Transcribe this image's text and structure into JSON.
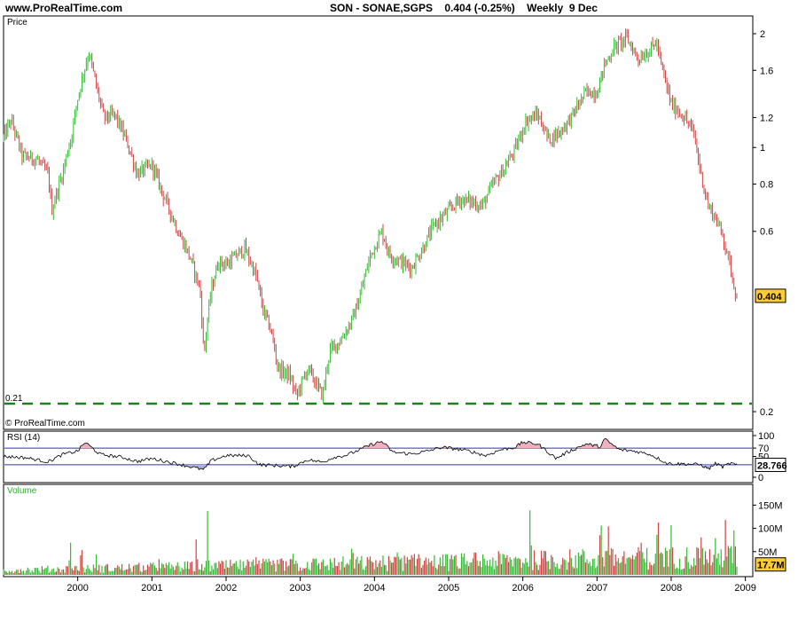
{
  "header": {
    "site": "www.ProRealTime.com",
    "symbol": "SON - SONAE,SGPS",
    "price": "0.404",
    "change": "(-0.25%)",
    "period": "Weekly",
    "date": "9 Dec"
  },
  "copyright": "© ProRealTime.com",
  "colors": {
    "up": "#33bb33",
    "down": "#cc4444",
    "support": "#118811",
    "rsi_line": "#000000",
    "rsi_bands": "#3333aa",
    "badge": "#ffcc33"
  },
  "chart_data": [
    {
      "type": "candlestick",
      "title": "Price",
      "scale": "log",
      "y_ticks": [
        {
          "value": 2,
          "label": "2"
        },
        {
          "value": 1.6,
          "label": "1.6"
        },
        {
          "value": 1.2,
          "label": "1.2"
        },
        {
          "value": 1,
          "label": "1"
        },
        {
          "value": 0.8,
          "label": "0.8"
        },
        {
          "value": 0.6,
          "label": "0.6"
        },
        {
          "value": 0.2,
          "label": "0.2"
        }
      ],
      "last_value": "0.404",
      "support_line": {
        "value": 0.21,
        "label": "0.21"
      },
      "x_ticks": [
        "2000",
        "2001",
        "2002",
        "2003",
        "2004",
        "2005",
        "2006",
        "2007",
        "2008",
        "2009"
      ],
      "x_range": [
        1999.0,
        2009.1
      ],
      "close_path": [
        [
          1999.0,
          1.06
        ],
        [
          1999.1,
          1.18
        ],
        [
          1999.25,
          0.95
        ],
        [
          1999.45,
          0.93
        ],
        [
          1999.6,
          0.85
        ],
        [
          1999.65,
          0.68
        ],
        [
          1999.8,
          0.86
        ],
        [
          1999.92,
          1.08
        ],
        [
          2000.0,
          1.35
        ],
        [
          2000.15,
          1.78
        ],
        [
          2000.25,
          1.45
        ],
        [
          2000.35,
          1.2
        ],
        [
          2000.5,
          1.22
        ],
        [
          2000.65,
          1.05
        ],
        [
          2000.8,
          0.85
        ],
        [
          2001.0,
          0.9
        ],
        [
          2001.15,
          0.75
        ],
        [
          2001.35,
          0.6
        ],
        [
          2001.5,
          0.52
        ],
        [
          2001.65,
          0.42
        ],
        [
          2001.7,
          0.28
        ],
        [
          2001.8,
          0.42
        ],
        [
          2001.9,
          0.5
        ],
        [
          2002.0,
          0.49
        ],
        [
          2002.15,
          0.52
        ],
        [
          2002.25,
          0.54
        ],
        [
          2002.4,
          0.46
        ],
        [
          2002.5,
          0.37
        ],
        [
          2002.6,
          0.33
        ],
        [
          2002.7,
          0.26
        ],
        [
          2002.85,
          0.25
        ],
        [
          2002.95,
          0.22
        ],
        [
          2003.1,
          0.26
        ],
        [
          2003.2,
          0.24
        ],
        [
          2003.3,
          0.22
        ],
        [
          2003.4,
          0.29
        ],
        [
          2003.55,
          0.31
        ],
        [
          2003.7,
          0.35
        ],
        [
          2003.8,
          0.4
        ],
        [
          2003.95,
          0.52
        ],
        [
          2004.1,
          0.6
        ],
        [
          2004.2,
          0.52
        ],
        [
          2004.35,
          0.5
        ],
        [
          2004.5,
          0.48
        ],
        [
          2004.65,
          0.54
        ],
        [
          2004.8,
          0.62
        ],
        [
          2005.0,
          0.68
        ],
        [
          2005.15,
          0.73
        ],
        [
          2005.3,
          0.72
        ],
        [
          2005.45,
          0.7
        ],
        [
          2005.6,
          0.8
        ],
        [
          2005.75,
          0.88
        ],
        [
          2005.9,
          0.99
        ],
        [
          2006.05,
          1.18
        ],
        [
          2006.2,
          1.22
        ],
        [
          2006.35,
          1.05
        ],
        [
          2006.5,
          1.1
        ],
        [
          2006.65,
          1.2
        ],
        [
          2006.85,
          1.4
        ],
        [
          2007.0,
          1.4
        ],
        [
          2007.1,
          1.65
        ],
        [
          2007.25,
          1.86
        ],
        [
          2007.4,
          1.95
        ],
        [
          2007.55,
          1.72
        ],
        [
          2007.7,
          1.8
        ],
        [
          2007.8,
          1.9
        ],
        [
          2007.88,
          1.6
        ],
        [
          2008.0,
          1.3
        ],
        [
          2008.15,
          1.22
        ],
        [
          2008.3,
          1.1
        ],
        [
          2008.4,
          0.85
        ],
        [
          2008.5,
          0.7
        ],
        [
          2008.6,
          0.65
        ],
        [
          2008.7,
          0.58
        ],
        [
          2008.8,
          0.48
        ],
        [
          2008.88,
          0.404
        ]
      ]
    },
    {
      "type": "line",
      "title": "RSI (14)",
      "y_ticks": [
        100,
        70,
        50,
        0
      ],
      "bands": [
        70,
        30
      ],
      "last_value": "28.766",
      "path": [
        [
          1999.0,
          50
        ],
        [
          1999.3,
          47
        ],
        [
          1999.6,
          37
        ],
        [
          1999.8,
          55
        ],
        [
          2000.0,
          63
        ],
        [
          2000.1,
          84
        ],
        [
          2000.3,
          55
        ],
        [
          2000.6,
          48
        ],
        [
          2000.8,
          38
        ],
        [
          2001.0,
          45
        ],
        [
          2001.3,
          34
        ],
        [
          2001.55,
          24
        ],
        [
          2001.7,
          18
        ],
        [
          2001.8,
          40
        ],
        [
          2002.0,
          52
        ],
        [
          2002.3,
          52
        ],
        [
          2002.45,
          30
        ],
        [
          2002.7,
          28
        ],
        [
          2002.9,
          26
        ],
        [
          2003.1,
          42
        ],
        [
          2003.3,
          36
        ],
        [
          2003.45,
          48
        ],
        [
          2003.6,
          52
        ],
        [
          2003.75,
          62
        ],
        [
          2003.95,
          78
        ],
        [
          2004.1,
          86
        ],
        [
          2004.25,
          60
        ],
        [
          2004.5,
          56
        ],
        [
          2004.7,
          62
        ],
        [
          2004.9,
          72
        ],
        [
          2005.1,
          68
        ],
        [
          2005.3,
          62
        ],
        [
          2005.5,
          52
        ],
        [
          2005.7,
          66
        ],
        [
          2005.9,
          72
        ],
        [
          2006.0,
          84
        ],
        [
          2006.2,
          80
        ],
        [
          2006.45,
          45
        ],
        [
          2006.6,
          60
        ],
        [
          2006.85,
          80
        ],
        [
          2007.05,
          73
        ],
        [
          2007.1,
          92
        ],
        [
          2007.3,
          66
        ],
        [
          2007.5,
          63
        ],
        [
          2007.7,
          56
        ],
        [
          2007.85,
          43
        ],
        [
          2007.95,
          33
        ],
        [
          2008.2,
          32
        ],
        [
          2008.4,
          30
        ],
        [
          2008.5,
          20
        ],
        [
          2008.6,
          33
        ],
        [
          2008.7,
          25
        ],
        [
          2008.8,
          34
        ],
        [
          2008.88,
          28.766
        ]
      ]
    },
    {
      "type": "bar",
      "title": "Volume",
      "y_ticks": [
        {
          "value": 150,
          "label": "150M"
        },
        {
          "value": 100,
          "label": "100M"
        },
        {
          "value": 50,
          "label": "50M"
        }
      ],
      "last_value": "17.7M",
      "spikes": [
        [
          1999.9,
          95
        ],
        [
          2000.05,
          80
        ],
        [
          2000.25,
          45
        ],
        [
          2001.1,
          40
        ],
        [
          2001.6,
          90
        ],
        [
          2001.75,
          140
        ],
        [
          2002.4,
          45
        ],
        [
          2002.9,
          60
        ],
        [
          2003.7,
          95
        ],
        [
          2004.3,
          70
        ],
        [
          2004.6,
          60
        ],
        [
          2005.3,
          45
        ],
        [
          2006.1,
          175
        ],
        [
          2006.8,
          80
        ],
        [
          2007.05,
          168
        ],
        [
          2007.15,
          140
        ],
        [
          2007.6,
          85
        ],
        [
          2007.82,
          180
        ],
        [
          2008.0,
          120
        ],
        [
          2008.4,
          110
        ],
        [
          2008.6,
          100
        ],
        [
          2008.73,
          136
        ],
        [
          2008.85,
          128
        ]
      ]
    }
  ]
}
